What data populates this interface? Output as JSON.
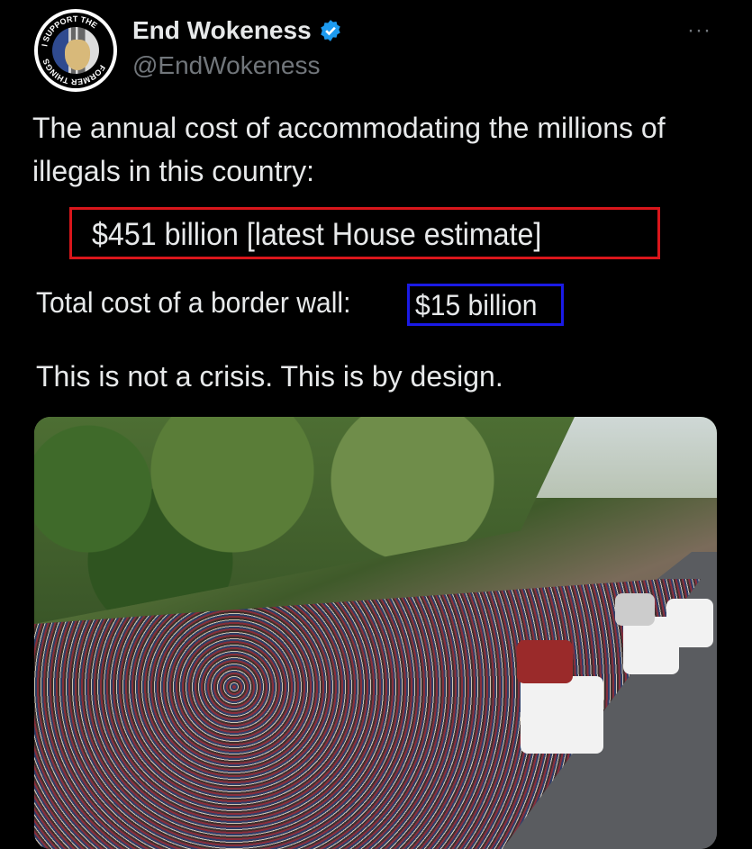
{
  "author": {
    "name": "End Wokeness",
    "handle": "@EndWokeness",
    "verified": true,
    "avatar_text": "I SUPPORT THE FORMER THINGS"
  },
  "menu": {
    "more_label": "···",
    "icon": "more-icon"
  },
  "tweet": {
    "line1": "The annual cost of accommodating the millions of illegals in this country:",
    "highlight_red": "$451 billion [latest House estimate]",
    "wall_label": "Total cost of a border wall:",
    "highlight_blue": "$15 billion",
    "closing": "This is not a crisis. This is by design."
  },
  "colors": {
    "red_box": "#d9161b",
    "blue_box": "#1a1ae6",
    "verified": "#1d9bf0",
    "handle": "#71767b"
  }
}
